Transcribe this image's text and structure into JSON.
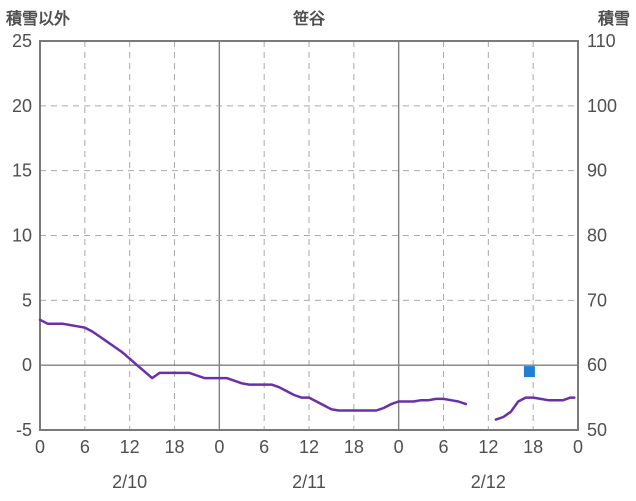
{
  "header": {
    "left_axis_title": "積雪以外",
    "station_name": "笹谷",
    "right_axis_title": "積雪"
  },
  "colors": {
    "line_purple": "#6A30A8",
    "marker_blue": "#1F7FD4",
    "grid_solid": "#808080",
    "grid_dashed": "#A9A9A9",
    "border": "#7A7A7A",
    "text": "#4F4F4F"
  },
  "chart_data": {
    "type": "line",
    "title": "笹谷",
    "left_axis": {
      "title": "積雪以外",
      "min": -5,
      "max": 25,
      "ticks": [
        25,
        20,
        15,
        10,
        5,
        0,
        -5
      ]
    },
    "right_axis": {
      "title": "積雪",
      "min": 50,
      "max": 110,
      "ticks": [
        110,
        100,
        90,
        80,
        70,
        60,
        50
      ]
    },
    "x_axis": {
      "hours_total": 72,
      "tick_interval_hours": 6,
      "hour_tick_labels": [
        "0",
        "6",
        "12",
        "18",
        "0",
        "6",
        "12",
        "18",
        "0",
        "6",
        "12",
        "18",
        "0"
      ],
      "date_labels": [
        "2/10",
        "2/11",
        "2/12"
      ],
      "date_label_center_hours": [
        12,
        36,
        60
      ],
      "grid_style": "minor-dashed-day-solid"
    },
    "series": [
      {
        "name": "積雪以外",
        "axis": "left",
        "type": "line",
        "color": "#6A30A8",
        "width": 2.5,
        "segments": [
          [
            [
              0,
              3.5
            ],
            [
              1,
              3.2
            ],
            [
              2,
              3.2
            ],
            [
              3,
              3.2
            ],
            [
              4,
              3.1
            ],
            [
              5,
              3.0
            ],
            [
              6,
              2.9
            ],
            [
              7,
              2.6
            ],
            [
              8,
              2.2
            ],
            [
              9,
              1.8
            ],
            [
              10,
              1.4
            ],
            [
              11,
              1.0
            ],
            [
              12,
              0.5
            ],
            [
              13,
              0.0
            ],
            [
              14,
              -0.5
            ],
            [
              15,
              -1.0
            ],
            [
              16,
              -0.6
            ],
            [
              17,
              -0.6
            ],
            [
              18,
              -0.6
            ],
            [
              19,
              -0.6
            ],
            [
              20,
              -0.6
            ],
            [
              21,
              -0.8
            ],
            [
              22,
              -1.0
            ],
            [
              23,
              -1.0
            ],
            [
              24,
              -1.0
            ],
            [
              25,
              -1.0
            ],
            [
              26,
              -1.2
            ],
            [
              27,
              -1.4
            ],
            [
              28,
              -1.5
            ],
            [
              29,
              -1.5
            ],
            [
              30,
              -1.5
            ],
            [
              31,
              -1.5
            ],
            [
              32,
              -1.7
            ],
            [
              33,
              -2.0
            ],
            [
              34,
              -2.3
            ],
            [
              35,
              -2.5
            ],
            [
              36,
              -2.5
            ],
            [
              37,
              -2.8
            ],
            [
              38,
              -3.1
            ],
            [
              39,
              -3.4
            ],
            [
              40,
              -3.5
            ],
            [
              41,
              -3.5
            ],
            [
              42,
              -3.5
            ],
            [
              43,
              -3.5
            ],
            [
              44,
              -3.5
            ],
            [
              45,
              -3.5
            ],
            [
              46,
              -3.3
            ],
            [
              47,
              -3.0
            ],
            [
              48,
              -2.8
            ],
            [
              49,
              -2.8
            ],
            [
              50,
              -2.8
            ],
            [
              51,
              -2.7
            ],
            [
              52,
              -2.7
            ],
            [
              53,
              -2.6
            ],
            [
              54,
              -2.6
            ],
            [
              55,
              -2.7
            ],
            [
              56,
              -2.8
            ],
            [
              57,
              -3.0
            ]
          ],
          [
            [
              61,
              -4.2
            ],
            [
              62,
              -4.0
            ],
            [
              63,
              -3.6
            ],
            [
              64,
              -2.8
            ],
            [
              65,
              -2.5
            ],
            [
              66,
              -2.5
            ],
            [
              67,
              -2.6
            ],
            [
              68,
              -2.7
            ],
            [
              69,
              -2.7
            ],
            [
              70,
              -2.7
            ],
            [
              71,
              -2.5
            ],
            [
              71.5,
              -2.5
            ]
          ]
        ]
      },
      {
        "name": "積雪",
        "axis": "right",
        "type": "square",
        "color": "#1F7FD4",
        "size": 11,
        "points": [
          [
            65.5,
            59
          ]
        ]
      }
    ]
  }
}
